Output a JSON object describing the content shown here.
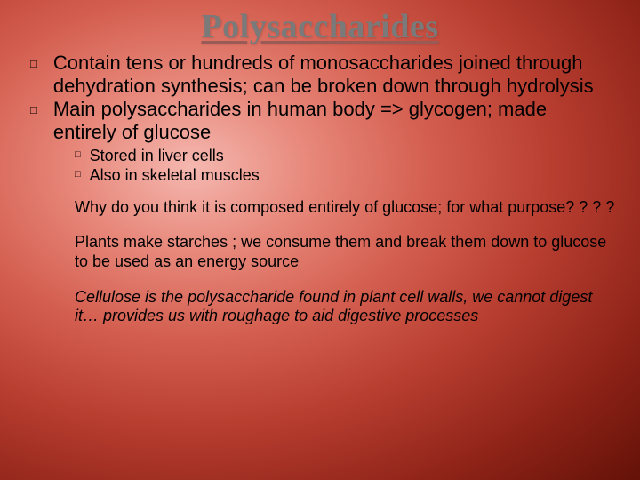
{
  "title": "Polysaccharides",
  "title_color": "#7a7a7a",
  "title_fontsize": 38,
  "title_font": "Georgia",
  "underline_color": "#9a5a55",
  "body_fontsize": 22,
  "sub_fontsize": 18,
  "bullet_glyph": "□",
  "background_gradient": {
    "type": "radial",
    "stops": [
      "#f5b8b0",
      "#e88a7d",
      "#d45f50",
      "#b83e30",
      "#8f2318",
      "#651208"
    ]
  },
  "bullets": [
    "Contain tens or hundreds of monosaccharides joined through dehydration synthesis; can be broken down through hydrolysis",
    "Main polysaccharides in human body => glycogen; made entirely of glucose"
  ],
  "sub_bullets": [
    "Stored in liver cells",
    "Also in skeletal muscles"
  ],
  "paragraphs": [
    "Why do you think it is composed entirely of glucose; for what purpose? ? ? ?",
    "Plants  make starches ; we consume them and break them down to glucose to be used as an energy source"
  ],
  "italic_paragraph": "Cellulose is the polysaccharide found in plant cell walls, we cannot digest it… provides us with roughage to aid digestive processes"
}
